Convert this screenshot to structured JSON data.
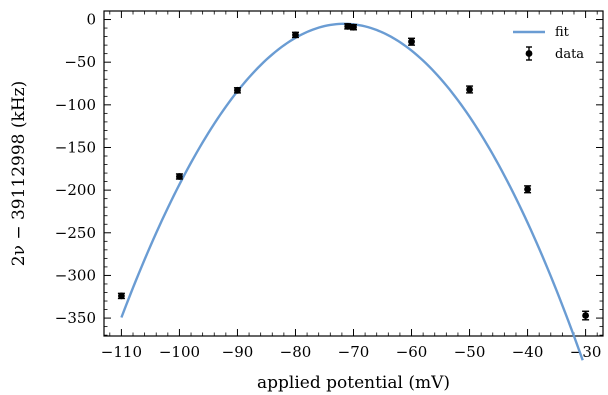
{
  "chart_data": {
    "type": "scatter",
    "xlabel": "applied potential (mV)",
    "ylabel": "2ν − 39112998 (kHz)",
    "xlim": [
      -113,
      -27
    ],
    "ylim": [
      -371,
      10
    ],
    "x_ticks": [
      -110,
      -100,
      -90,
      -80,
      -70,
      -60,
      -50,
      -40,
      -30
    ],
    "x_tick_labels": [
      "−110",
      "−100",
      "−90",
      "−80",
      "−70",
      "−60",
      "−50",
      "−40",
      "−30"
    ],
    "y_ticks": [
      0,
      -50,
      -100,
      -150,
      -200,
      -250,
      -300,
      -350
    ],
    "y_tick_labels": [
      "0",
      "−50",
      "−100",
      "−150",
      "−200",
      "−250",
      "−300",
      "−350"
    ],
    "legend": {
      "position": "top-right",
      "fit_label": "fit",
      "data_label": "data"
    },
    "series": [
      {
        "name": "data",
        "x": [
          -110,
          -100,
          -90,
          -80,
          -71,
          -70,
          -60,
          -50,
          -40,
          -30
        ],
        "y": [
          -324,
          -184,
          -83,
          -18,
          -8,
          -9,
          -26,
          -82,
          -199,
          -347
        ],
        "yerr": [
          3,
          3,
          3,
          3,
          3,
          3,
          4,
          4,
          4,
          5
        ]
      },
      {
        "name": "fit",
        "vertex_x": -71.6,
        "vertex_y": -5,
        "curvature": -0.2335
      }
    ],
    "colors": {
      "fit": "#6a9cd3",
      "data": "#000000"
    },
    "grid": false
  }
}
